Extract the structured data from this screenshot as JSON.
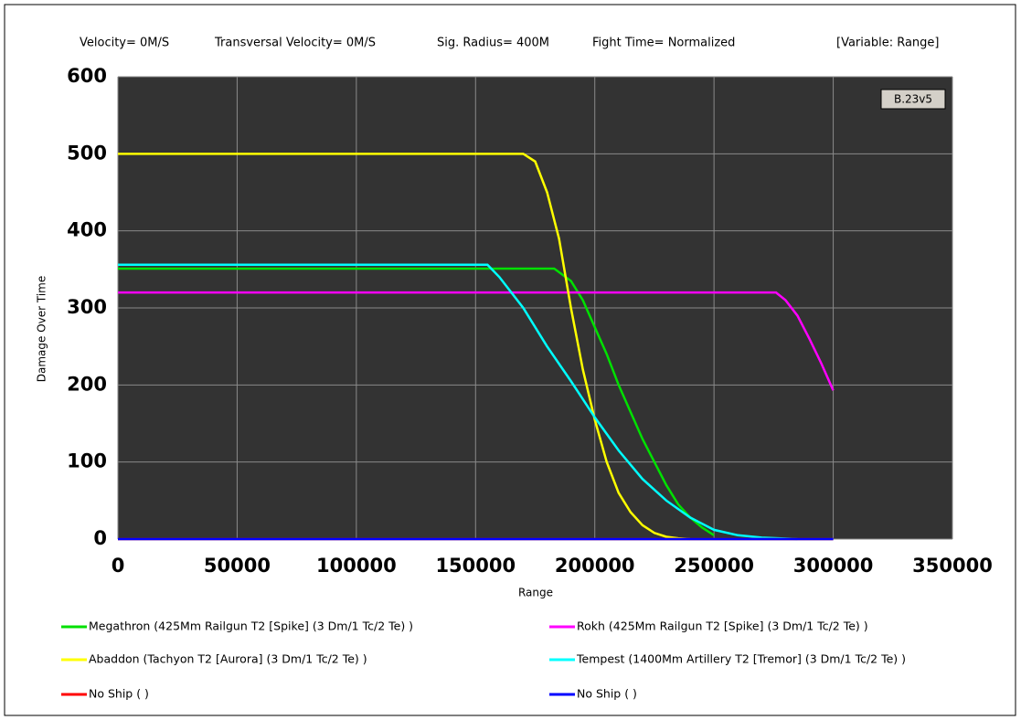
{
  "chart_data": {
    "type": "line",
    "header": [
      "Velocity= 0M/S",
      "Transversal Velocity= 0M/S",
      "Sig. Radius= 400M",
      "Fight Time= Normalized",
      "[Variable: Range]"
    ],
    "annotation": "B.23v5",
    "x_label": "Range",
    "y_label": "Damage Over Time",
    "xlim": [
      0,
      350000
    ],
    "xticks": [
      0,
      50000,
      100000,
      150000,
      200000,
      250000,
      300000,
      350000
    ],
    "ylim": [
      0,
      600
    ],
    "yticks": [
      0,
      100,
      200,
      300,
      400,
      500,
      600
    ],
    "grid": true,
    "series": [
      {
        "name": "Megathron (425Mm Railgun T2 [Spike] (3 Dm/1 Tc/2 Te) )",
        "color": "#00e000",
        "x": [
          0,
          183000,
          190000,
          195000,
          200000,
          205000,
          210000,
          215000,
          220000,
          225000,
          230000,
          235000,
          240000,
          245000,
          250000
        ],
        "values": [
          351,
          351,
          335,
          310,
          275,
          240,
          200,
          165,
          130,
          100,
          70,
          45,
          28,
          15,
          5
        ]
      },
      {
        "name": "Rokh (425Mm Railgun T2 [Spike] (3 Dm/1 Tc/2 Te) )",
        "color": "#ff00ff",
        "x": [
          0,
          276000,
          280000,
          285000,
          290000,
          295000,
          300000
        ],
        "values": [
          320,
          320,
          310,
          290,
          260,
          228,
          193
        ]
      },
      {
        "name": "Abaddon (Tachyon T2 [Aurora] (3 Dm/1 Tc/2 Te) )",
        "color": "#ffff00",
        "x": [
          0,
          170000,
          175000,
          180000,
          185000,
          190000,
          195000,
          200000,
          205000,
          210000,
          215000,
          220000,
          225000,
          230000,
          235000,
          240000
        ],
        "values": [
          500,
          500,
          490,
          450,
          390,
          300,
          220,
          155,
          100,
          60,
          35,
          18,
          8,
          3,
          1,
          0
        ]
      },
      {
        "name": "Tempest (1400Mm Artillery T2 [Tremor] (3 Dm/1 Tc/2 Te) )",
        "color": "#00ffff",
        "x": [
          0,
          155000,
          160000,
          170000,
          180000,
          190000,
          200000,
          210000,
          220000,
          230000,
          240000,
          250000,
          260000,
          270000,
          285000
        ],
        "values": [
          356,
          356,
          340,
          300,
          250,
          205,
          158,
          115,
          78,
          50,
          28,
          12,
          5,
          2,
          0
        ]
      },
      {
        "name": "No Ship ( )",
        "color": "#ff0000",
        "x": [
          0,
          300000
        ],
        "values": [
          0,
          0
        ]
      },
      {
        "name": "No Ship ( )",
        "color": "#0000ff",
        "x": [
          0,
          300000
        ],
        "values": [
          0,
          0
        ]
      }
    ]
  }
}
